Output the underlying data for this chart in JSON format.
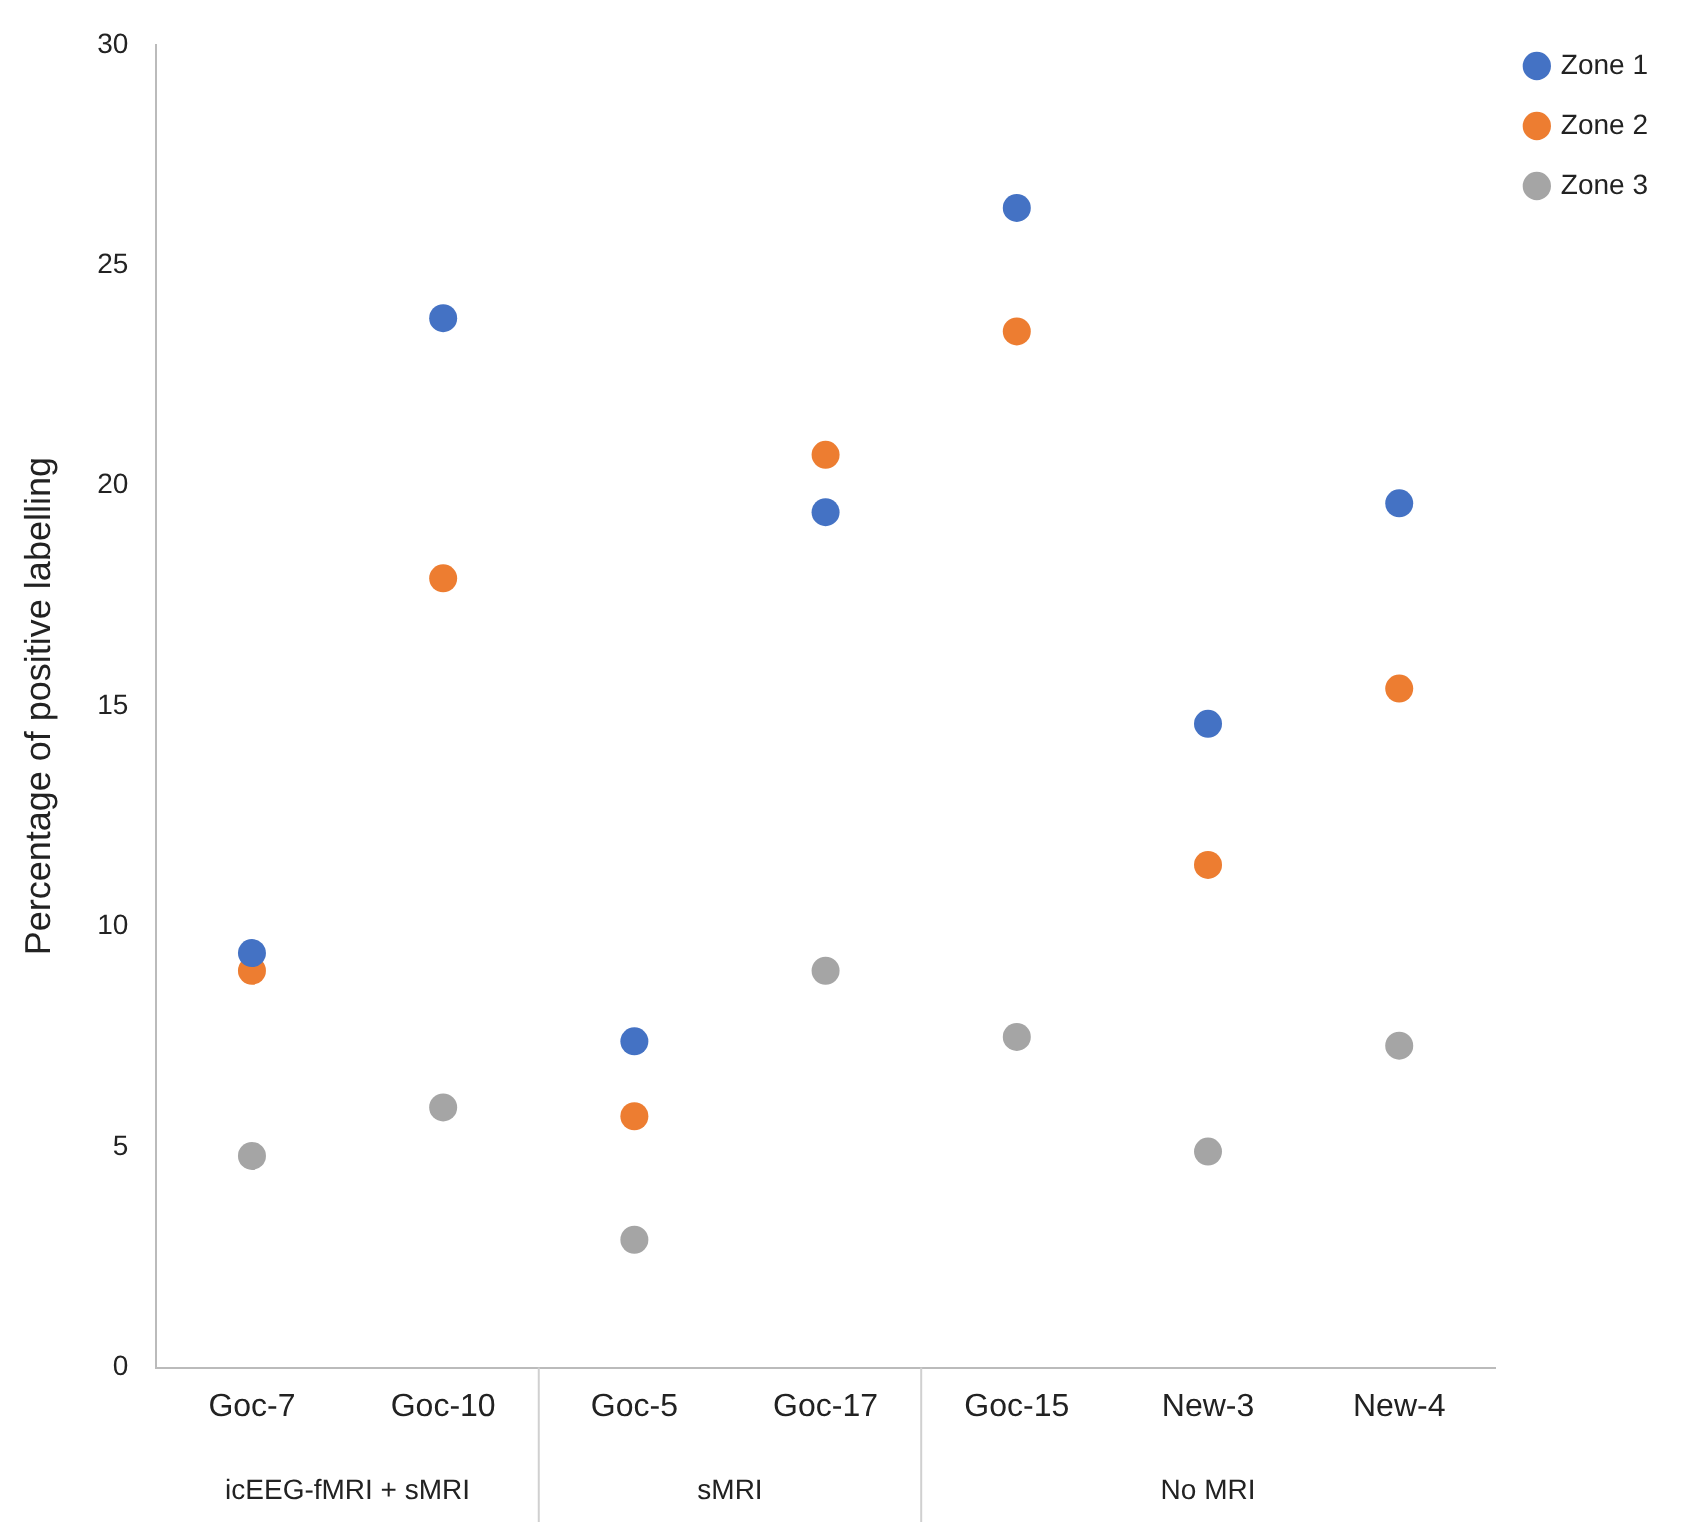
{
  "chart_data": {
    "type": "scatter",
    "ylabel": "Percentage of positive labelling",
    "categories": [
      "Goc-7",
      "Goc-10",
      "Goc-5",
      "Goc-17",
      "Goc-15",
      "New-3",
      "New-4"
    ],
    "series": [
      {
        "name": "Zone 1",
        "color": "#4472c4",
        "values": [
          9.4,
          23.8,
          7.4,
          19.4,
          26.3,
          14.6,
          19.6
        ]
      },
      {
        "name": "Zone 2",
        "color": "#ed7d31",
        "values": [
          9.0,
          17.9,
          5.7,
          20.7,
          23.5,
          11.4,
          15.4
        ]
      },
      {
        "name": "Zone 3",
        "color": "#a5a5a5",
        "values": [
          4.8,
          5.9,
          2.9,
          9.0,
          7.5,
          4.9,
          7.3
        ]
      }
    ],
    "ylim": [
      0,
      30
    ],
    "yticks": [
      0,
      5,
      10,
      15,
      20,
      25,
      30
    ],
    "grid": false,
    "legend": "top right",
    "marker": "circle",
    "annotations": [
      "icEEG-fMRI + sMRI",
      "sMRI",
      "No MRI"
    ]
  }
}
